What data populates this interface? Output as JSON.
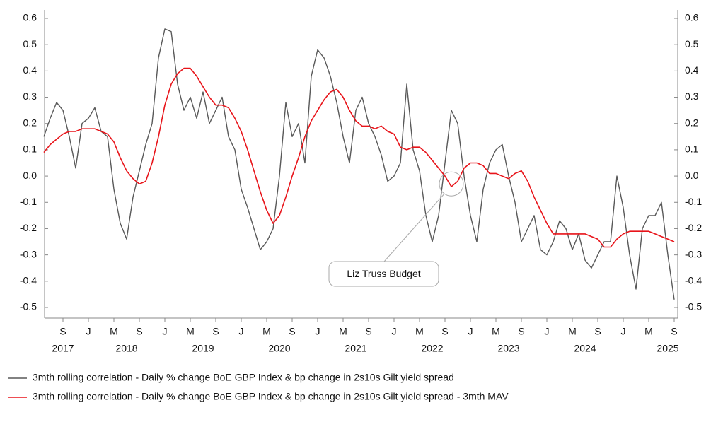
{
  "chart_data": {
    "type": "line",
    "x": [
      "2017-06",
      "2017-07",
      "2017-08",
      "2017-09",
      "2017-10",
      "2017-11",
      "2017-12",
      "2018-01",
      "2018-02",
      "2018-03",
      "2018-04",
      "2018-05",
      "2018-06",
      "2018-07",
      "2018-08",
      "2018-09",
      "2018-10",
      "2018-11",
      "2018-12",
      "2019-01",
      "2019-02",
      "2019-03",
      "2019-04",
      "2019-05",
      "2019-06",
      "2019-07",
      "2019-08",
      "2019-09",
      "2019-10",
      "2019-11",
      "2019-12",
      "2020-01",
      "2020-02",
      "2020-03",
      "2020-04",
      "2020-05",
      "2020-06",
      "2020-07",
      "2020-08",
      "2020-09",
      "2020-10",
      "2020-11",
      "2020-12",
      "2021-01",
      "2021-02",
      "2021-03",
      "2021-04",
      "2021-05",
      "2021-06",
      "2021-07",
      "2021-08",
      "2021-09",
      "2021-10",
      "2021-11",
      "2021-12",
      "2022-01",
      "2022-02",
      "2022-03",
      "2022-04",
      "2022-05",
      "2022-06",
      "2022-07",
      "2022-08",
      "2022-09",
      "2022-10",
      "2022-11",
      "2022-12",
      "2023-01",
      "2023-02",
      "2023-03",
      "2023-04",
      "2023-05",
      "2023-06",
      "2023-07",
      "2023-08",
      "2023-09",
      "2023-10",
      "2023-11",
      "2023-12",
      "2024-01",
      "2024-02",
      "2024-03",
      "2024-04",
      "2024-05",
      "2024-06",
      "2024-07",
      "2024-08",
      "2024-09",
      "2024-10",
      "2024-11",
      "2024-12",
      "2025-01",
      "2025-02",
      "2025-03",
      "2025-04",
      "2025-05",
      "2025-06",
      "2025-07",
      "2025-08",
      "2025-09"
    ],
    "series": [
      {
        "name": "3mth rolling correlation - Daily % change BoE GBP Index & bp change in 2s10s Gilt yield spread",
        "color": "#595959",
        "values": [
          0.15,
          0.22,
          0.28,
          0.25,
          0.15,
          0.03,
          0.2,
          0.22,
          0.26,
          0.17,
          0.15,
          -0.05,
          -0.18,
          -0.24,
          -0.08,
          0.02,
          0.12,
          0.2,
          0.45,
          0.56,
          0.55,
          0.35,
          0.25,
          0.3,
          0.22,
          0.32,
          0.2,
          0.25,
          0.3,
          0.15,
          0.1,
          -0.05,
          -0.12,
          -0.2,
          -0.28,
          -0.25,
          -0.2,
          0.0,
          0.28,
          0.15,
          0.2,
          0.05,
          0.38,
          0.48,
          0.45,
          0.38,
          0.28,
          0.15,
          0.05,
          0.25,
          0.3,
          0.2,
          0.15,
          0.08,
          -0.02,
          0.0,
          0.05,
          0.35,
          0.1,
          0.02,
          -0.15,
          -0.25,
          -0.15,
          0.05,
          0.25,
          0.2,
          0.0,
          -0.15,
          -0.25,
          -0.05,
          0.05,
          0.1,
          0.12,
          0.0,
          -0.1,
          -0.25,
          -0.2,
          -0.15,
          -0.28,
          -0.3,
          -0.25,
          -0.17,
          -0.2,
          -0.28,
          -0.22,
          -0.32,
          -0.35,
          -0.3,
          -0.25,
          -0.25,
          0.0,
          -0.12,
          -0.3,
          -0.43,
          -0.2,
          -0.15,
          -0.15,
          -0.1,
          -0.3,
          -0.47
        ]
      },
      {
        "name": "3mth rolling correlation - Daily % change BoE GBP Index & bp change in 2s10s Gilt yield spread - 3mth MAV",
        "color": "#e8141a",
        "values": [
          0.09,
          0.12,
          0.14,
          0.16,
          0.17,
          0.17,
          0.18,
          0.18,
          0.18,
          0.17,
          0.16,
          0.13,
          0.07,
          0.02,
          -0.01,
          -0.03,
          -0.02,
          0.05,
          0.15,
          0.27,
          0.35,
          0.39,
          0.41,
          0.41,
          0.38,
          0.34,
          0.3,
          0.27,
          0.27,
          0.26,
          0.22,
          0.17,
          0.1,
          0.02,
          -0.06,
          -0.13,
          -0.18,
          -0.15,
          -0.08,
          0.0,
          0.07,
          0.15,
          0.21,
          0.25,
          0.29,
          0.32,
          0.33,
          0.3,
          0.25,
          0.21,
          0.19,
          0.19,
          0.18,
          0.19,
          0.17,
          0.16,
          0.11,
          0.1,
          0.11,
          0.11,
          0.09,
          0.06,
          0.03,
          0.0,
          -0.04,
          -0.02,
          0.03,
          0.05,
          0.05,
          0.04,
          0.01,
          0.01,
          0.0,
          -0.01,
          0.01,
          0.02,
          -0.02,
          -0.08,
          -0.13,
          -0.18,
          -0.22,
          -0.22,
          -0.22,
          -0.22,
          -0.22,
          -0.22,
          -0.23,
          -0.24,
          -0.27,
          -0.27,
          -0.24,
          -0.22,
          -0.21,
          -0.21,
          -0.21,
          -0.21,
          -0.22,
          -0.23,
          -0.24,
          -0.25
        ]
      }
    ],
    "xlim": [
      "2017-06",
      "2025-09"
    ],
    "xticks": [
      {
        "value": "2017-09",
        "label": "S"
      },
      {
        "value": "2018-01",
        "label": "J"
      },
      {
        "value": "2018-05",
        "label": "M"
      },
      {
        "value": "2018-09",
        "label": "S"
      },
      {
        "value": "2019-01",
        "label": "J"
      },
      {
        "value": "2019-05",
        "label": "M"
      },
      {
        "value": "2019-09",
        "label": "S"
      },
      {
        "value": "2020-01",
        "label": "J"
      },
      {
        "value": "2020-05",
        "label": "M"
      },
      {
        "value": "2020-09",
        "label": "S"
      },
      {
        "value": "2021-01",
        "label": "J"
      },
      {
        "value": "2021-05",
        "label": "M"
      },
      {
        "value": "2021-09",
        "label": "S"
      },
      {
        "value": "2022-01",
        "label": "J"
      },
      {
        "value": "2022-05",
        "label": "M"
      },
      {
        "value": "2022-09",
        "label": "S"
      },
      {
        "value": "2023-01",
        "label": "J"
      },
      {
        "value": "2023-05",
        "label": "M"
      },
      {
        "value": "2023-09",
        "label": "S"
      },
      {
        "value": "2024-01",
        "label": "J"
      },
      {
        "value": "2024-05",
        "label": "M"
      },
      {
        "value": "2024-09",
        "label": "S"
      },
      {
        "value": "2025-01",
        "label": "J"
      },
      {
        "value": "2025-05",
        "label": "M"
      },
      {
        "value": "2025-09",
        "label": "S"
      }
    ],
    "year_labels": [
      {
        "value": "2017-09",
        "label": "2017"
      },
      {
        "value": "2018-07",
        "label": "2018"
      },
      {
        "value": "2019-07",
        "label": "2019"
      },
      {
        "value": "2020-07",
        "label": "2020"
      },
      {
        "value": "2021-07",
        "label": "2021"
      },
      {
        "value": "2022-07",
        "label": "2022"
      },
      {
        "value": "2023-07",
        "label": "2023"
      },
      {
        "value": "2024-07",
        "label": "2024"
      },
      {
        "value": "2025-08",
        "label": "2025"
      }
    ],
    "ylim": [
      -0.5,
      0.6
    ],
    "yticks": [
      0.6,
      0.5,
      0.4,
      0.3,
      0.2,
      0.1,
      {
        "value": 0,
        "label": "0.0"
      },
      -0.1,
      -0.2,
      -0.3,
      -0.4,
      -0.5
    ],
    "y2lim": [
      -0.5,
      0.6
    ],
    "y2ticks": [
      0.6,
      0.5,
      0.4,
      0.3,
      0.2,
      0.1,
      {
        "value": 0,
        "label": "0.0"
      },
      -0.1,
      -0.2,
      -0.3,
      -0.4,
      -0.5
    ],
    "annotations": [
      {
        "text": "Liz Truss Budget",
        "x": "2022-10",
        "y": -0.03
      }
    ],
    "grid": false
  }
}
